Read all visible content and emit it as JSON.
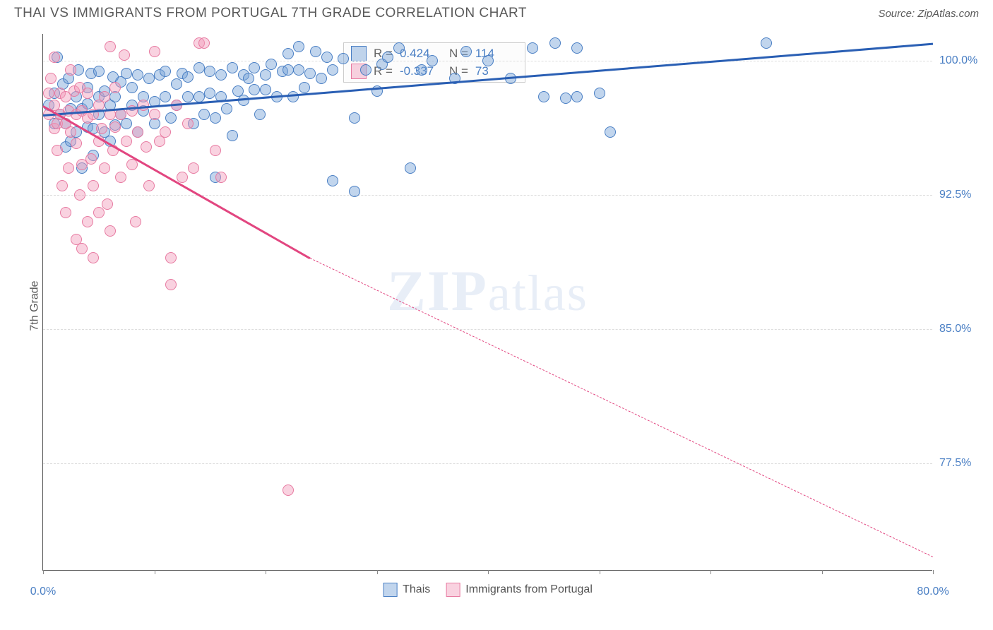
{
  "header": {
    "title": "THAI VS IMMIGRANTS FROM PORTUGAL 7TH GRADE CORRELATION CHART",
    "source": "Source: ZipAtlas.com"
  },
  "watermark": {
    "zip": "ZIP",
    "atlas": "atlas"
  },
  "chart": {
    "type": "scatter",
    "y_axis_label": "7th Grade",
    "xlim": [
      0,
      80
    ],
    "ylim": [
      71.5,
      101.5
    ],
    "x_ticks": [
      0,
      10,
      20,
      30,
      40,
      50,
      60,
      70,
      80
    ],
    "x_tick_labels_shown": {
      "0": "0.0%",
      "80": "80.0%"
    },
    "y_ticks": [
      77.5,
      85.0,
      92.5,
      100.0
    ],
    "y_tick_labels": [
      "77.5%",
      "85.0%",
      "92.5%",
      "100.0%"
    ],
    "grid_color": "#dddddd",
    "axis_label_color": "#4a7fc4",
    "background_color": "#ffffff",
    "series": [
      {
        "name": "Thais",
        "fill": "rgba(118,161,214,0.45)",
        "stroke": "#4a7fc4",
        "line_color": "#2a5fb4",
        "trend": {
          "x1": 0,
          "y1": 97.0,
          "x2": 80,
          "y2": 101.0
        },
        "R": "0.424",
        "N": "114",
        "points": [
          [
            0.5,
            97.5
          ],
          [
            1,
            96.5
          ],
          [
            1,
            98.2
          ],
          [
            1.3,
            100.2
          ],
          [
            1.5,
            97.0
          ],
          [
            1.8,
            98.7
          ],
          [
            2,
            96.5
          ],
          [
            2,
            95.2
          ],
          [
            2.3,
            99.0
          ],
          [
            2.5,
            97.3
          ],
          [
            2.5,
            95.5
          ],
          [
            3,
            98.0
          ],
          [
            3,
            96.0
          ],
          [
            3.2,
            99.5
          ],
          [
            3.5,
            97.3
          ],
          [
            3.5,
            94.0
          ],
          [
            4,
            98.5
          ],
          [
            4,
            96.3
          ],
          [
            4,
            97.6
          ],
          [
            4.3,
            99.3
          ],
          [
            4.5,
            96.2
          ],
          [
            4.5,
            94.7
          ],
          [
            5,
            98.0
          ],
          [
            5,
            97.0
          ],
          [
            5,
            99.4
          ],
          [
            5.5,
            96.0
          ],
          [
            5.5,
            98.3
          ],
          [
            6,
            97.5
          ],
          [
            6,
            95.5
          ],
          [
            6.3,
            99.1
          ],
          [
            6.5,
            98.0
          ],
          [
            6.5,
            96.4
          ],
          [
            7,
            97.0
          ],
          [
            7,
            98.8
          ],
          [
            7.5,
            96.5
          ],
          [
            7.5,
            99.3
          ],
          [
            8,
            97.5
          ],
          [
            8,
            98.5
          ],
          [
            8.5,
            96.0
          ],
          [
            8.5,
            99.2
          ],
          [
            9,
            98.0
          ],
          [
            9,
            97.2
          ],
          [
            9.5,
            99.0
          ],
          [
            10,
            97.7
          ],
          [
            10,
            96.5
          ],
          [
            10.5,
            99.2
          ],
          [
            11,
            98.0
          ],
          [
            11,
            99.4
          ],
          [
            11.5,
            96.8
          ],
          [
            12,
            98.7
          ],
          [
            12,
            97.5
          ],
          [
            12.5,
            99.3
          ],
          [
            13,
            98.0
          ],
          [
            13,
            99.1
          ],
          [
            13.5,
            96.5
          ],
          [
            14,
            99.6
          ],
          [
            14,
            98.0
          ],
          [
            14.5,
            97.0
          ],
          [
            15,
            99.4
          ],
          [
            15,
            98.2
          ],
          [
            15.5,
            96.8
          ],
          [
            15.5,
            93.5
          ],
          [
            16,
            99.2
          ],
          [
            16,
            98.0
          ],
          [
            16.5,
            97.3
          ],
          [
            17,
            99.6
          ],
          [
            17,
            95.8
          ],
          [
            17.5,
            98.3
          ],
          [
            18,
            99.2
          ],
          [
            18,
            97.8
          ],
          [
            18.5,
            99.0
          ],
          [
            19,
            98.4
          ],
          [
            19,
            99.6
          ],
          [
            19.5,
            97.0
          ],
          [
            20,
            99.2
          ],
          [
            20,
            98.4
          ],
          [
            20.5,
            99.8
          ],
          [
            21,
            98.0
          ],
          [
            21.5,
            99.4
          ],
          [
            22,
            99.5
          ],
          [
            22,
            100.4
          ],
          [
            22.5,
            98.0
          ],
          [
            23,
            99.5
          ],
          [
            23,
            100.8
          ],
          [
            23.5,
            98.5
          ],
          [
            24,
            99.3
          ],
          [
            24.5,
            100.5
          ],
          [
            25,
            99.0
          ],
          [
            25.5,
            100.2
          ],
          [
            26,
            99.5
          ],
          [
            26,
            93.3
          ],
          [
            27,
            100.1
          ],
          [
            28,
            92.7
          ],
          [
            28,
            96.8
          ],
          [
            29,
            99.5
          ],
          [
            30,
            98.3
          ],
          [
            30.5,
            99.8
          ],
          [
            31,
            100.2
          ],
          [
            32,
            100.7
          ],
          [
            33,
            94.0
          ],
          [
            34,
            99.5
          ],
          [
            35,
            100.0
          ],
          [
            37,
            99.0
          ],
          [
            38,
            100.5
          ],
          [
            40,
            100.0
          ],
          [
            42,
            99.0
          ],
          [
            44,
            100.7
          ],
          [
            45,
            98.0
          ],
          [
            46,
            101.0
          ],
          [
            47,
            97.9
          ],
          [
            48,
            98.0
          ],
          [
            48,
            100.7
          ],
          [
            50,
            98.2
          ],
          [
            51,
            96.0
          ],
          [
            65,
            101.0
          ]
        ]
      },
      {
        "name": "Immigrants from Portugal",
        "fill": "rgba(241,156,187,0.45)",
        "stroke": "#e77aa1",
        "line_color": "#e24680",
        "trend_solid": {
          "x1": 0,
          "y1": 97.5,
          "x2": 24,
          "y2": 89.0
        },
        "trend_dash": {
          "x1": 24,
          "y1": 89.0,
          "x2": 80,
          "y2": 72.3
        },
        "R": "-0.337",
        "N": "73",
        "points": [
          [
            0.5,
            97.0
          ],
          [
            0.5,
            98.2
          ],
          [
            0.7,
            99.0
          ],
          [
            1,
            96.2
          ],
          [
            1,
            97.5
          ],
          [
            1,
            100.2
          ],
          [
            1.3,
            96.5
          ],
          [
            1.3,
            95.0
          ],
          [
            1.5,
            98.2
          ],
          [
            1.5,
            97.0
          ],
          [
            1.7,
            93.0
          ],
          [
            2,
            96.5
          ],
          [
            2,
            98.0
          ],
          [
            2,
            91.5
          ],
          [
            2.3,
            97.2
          ],
          [
            2.3,
            94.0
          ],
          [
            2.5,
            99.5
          ],
          [
            2.5,
            96.0
          ],
          [
            2.8,
            98.3
          ],
          [
            3,
            97.0
          ],
          [
            3,
            90.0
          ],
          [
            3,
            95.4
          ],
          [
            3.3,
            98.5
          ],
          [
            3.3,
            92.5
          ],
          [
            3.5,
            97.2
          ],
          [
            3.5,
            94.2
          ],
          [
            3.5,
            89.5
          ],
          [
            4,
            96.8
          ],
          [
            4,
            91.0
          ],
          [
            4,
            98.2
          ],
          [
            4.3,
            94.5
          ],
          [
            4.5,
            97.0
          ],
          [
            4.5,
            93.0
          ],
          [
            4.5,
            89.0
          ],
          [
            5,
            95.5
          ],
          [
            5,
            97.5
          ],
          [
            5,
            91.5
          ],
          [
            5.3,
            96.2
          ],
          [
            5.5,
            98.0
          ],
          [
            5.5,
            94.0
          ],
          [
            5.8,
            92.0
          ],
          [
            6,
            97.0
          ],
          [
            6,
            90.5
          ],
          [
            6,
            100.8
          ],
          [
            6.3,
            95.0
          ],
          [
            6.5,
            98.5
          ],
          [
            6.5,
            96.3
          ],
          [
            7,
            93.5
          ],
          [
            7,
            97.0
          ],
          [
            7.3,
            100.3
          ],
          [
            7.5,
            95.5
          ],
          [
            8,
            97.2
          ],
          [
            8,
            94.2
          ],
          [
            8.3,
            91.0
          ],
          [
            8.5,
            96.0
          ],
          [
            9,
            97.5
          ],
          [
            9.3,
            95.2
          ],
          [
            9.5,
            93.0
          ],
          [
            10,
            97.0
          ],
          [
            10,
            100.5
          ],
          [
            10.5,
            95.5
          ],
          [
            11,
            96.0
          ],
          [
            11.5,
            89.0
          ],
          [
            11.5,
            87.5
          ],
          [
            12,
            97.5
          ],
          [
            12.5,
            93.5
          ],
          [
            13,
            96.5
          ],
          [
            13.5,
            94.0
          ],
          [
            14,
            101.0
          ],
          [
            14.5,
            101.0
          ],
          [
            15.5,
            95.0
          ],
          [
            16,
            93.5
          ],
          [
            22,
            76.0
          ]
        ]
      }
    ]
  },
  "legend_box": {
    "rows": [
      {
        "swatch_fill": "rgba(118,161,214,0.45)",
        "swatch_stroke": "#4a7fc4",
        "r_label": "R =",
        "r_val": "0.424",
        "n_label": "N =",
        "n_val": "114"
      },
      {
        "swatch_fill": "rgba(241,156,187,0.45)",
        "swatch_stroke": "#e77aa1",
        "r_label": "R =",
        "r_val": "-0.337",
        "n_label": "N =",
        "n_val": "73"
      }
    ]
  },
  "bottom_legend": {
    "items": [
      {
        "swatch_fill": "rgba(118,161,214,0.45)",
        "swatch_stroke": "#4a7fc4",
        "label": "Thais"
      },
      {
        "swatch_fill": "rgba(241,156,187,0.45)",
        "swatch_stroke": "#e77aa1",
        "label": "Immigrants from Portugal"
      }
    ]
  }
}
